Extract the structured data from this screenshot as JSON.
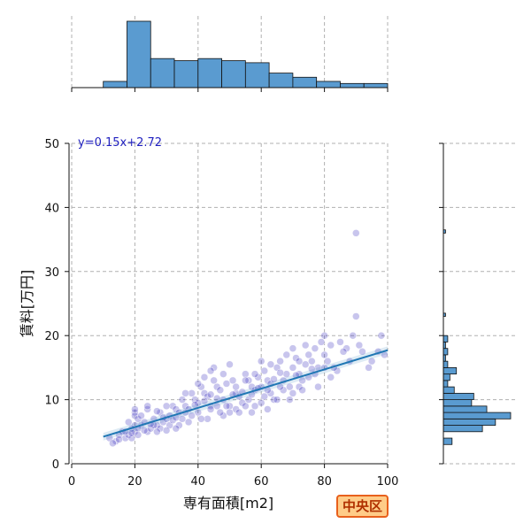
{
  "chart_data": {
    "type": "scatter",
    "xlabel": "専有面積[m2]",
    "ylabel": "賃料[万円]",
    "xlim": [
      0,
      100
    ],
    "ylim": [
      0,
      50
    ],
    "xticks": [
      0,
      20,
      40,
      60,
      80,
      100
    ],
    "yticks": [
      0,
      10,
      20,
      30,
      40,
      50
    ],
    "grid": true,
    "regression": {
      "equation": "y=0.15x+2.72",
      "slope": 0.15,
      "intercept": 2.72,
      "x_range": [
        10,
        100
      ],
      "color": "#1f77b4"
    },
    "point_color": "#3a2fbf",
    "hist_color": "#5a9bd0",
    "marginal_x_hist": {
      "bin_edges": [
        0,
        10,
        17.5,
        25,
        32.5,
        40,
        47.5,
        55,
        62.5,
        70,
        77.5,
        85,
        92.5,
        100
      ],
      "counts": [
        0,
        3,
        32,
        14,
        13,
        14,
        13,
        12,
        7,
        5,
        3,
        2,
        2
      ]
    },
    "marginal_y_hist": {
      "bin_edges": [
        3,
        4,
        5,
        6,
        7,
        8,
        9,
        10,
        11,
        12,
        13,
        14,
        15,
        16,
        17,
        18,
        19,
        20,
        21
      ],
      "counts": [
        4,
        0,
        18,
        24,
        31,
        20,
        13,
        14,
        5,
        2,
        3,
        6,
        2,
        1,
        2,
        1,
        2,
        0
      ]
    },
    "outlier_y_hist": [
      {
        "y": 36,
        "count": 1
      },
      {
        "y": 23,
        "count": 1
      }
    ],
    "points": [
      [
        20,
        8
      ],
      [
        20,
        7.5
      ],
      [
        20,
        8.5
      ],
      [
        20,
        6
      ],
      [
        21,
        7
      ],
      [
        20,
        5
      ],
      [
        19,
        5.5
      ],
      [
        18,
        6.5
      ],
      [
        22,
        6
      ],
      [
        21,
        5.5
      ],
      [
        12,
        4
      ],
      [
        14,
        3.5
      ],
      [
        15,
        4.5
      ],
      [
        17,
        4
      ],
      [
        16,
        5
      ],
      [
        18,
        4.5
      ],
      [
        13,
        3.2
      ],
      [
        19,
        4
      ],
      [
        24,
        5
      ],
      [
        23,
        6.5
      ],
      [
        25,
        5.5
      ],
      [
        26,
        7
      ],
      [
        27,
        6
      ],
      [
        28,
        8
      ],
      [
        29,
        6.5
      ],
      [
        30,
        7
      ],
      [
        31,
        7.5
      ],
      [
        32,
        9
      ],
      [
        33,
        8.5
      ],
      [
        34,
        6
      ],
      [
        35,
        10
      ],
      [
        36,
        9
      ],
      [
        37,
        8.5
      ],
      [
        38,
        11
      ],
      [
        39,
        10
      ],
      [
        40,
        9.5
      ],
      [
        41,
        12
      ],
      [
        42,
        11
      ],
      [
        43,
        10.5
      ],
      [
        44,
        9
      ],
      [
        45,
        13
      ],
      [
        46,
        12
      ],
      [
        47,
        11.5
      ],
      [
        48,
        10
      ],
      [
        49,
        12.5
      ],
      [
        50,
        9
      ],
      [
        51,
        13
      ],
      [
        52,
        11
      ],
      [
        53,
        10.5
      ],
      [
        54,
        9.5
      ],
      [
        55,
        14
      ],
      [
        56,
        13
      ],
      [
        57,
        12
      ],
      [
        58,
        11.5
      ],
      [
        59,
        13.5
      ],
      [
        60,
        12
      ],
      [
        61,
        14.5
      ],
      [
        62,
        13
      ],
      [
        63,
        11
      ],
      [
        64,
        10
      ],
      [
        65,
        15
      ],
      [
        66,
        16
      ],
      [
        67,
        13
      ],
      [
        68,
        14
      ],
      [
        69,
        12
      ],
      [
        70,
        15
      ],
      [
        71,
        16.5
      ],
      [
        72,
        14
      ],
      [
        73,
        13
      ],
      [
        74,
        15.5
      ],
      [
        75,
        17
      ],
      [
        76,
        16
      ],
      [
        77,
        18
      ],
      [
        78,
        15
      ],
      [
        79,
        19
      ],
      [
        80,
        17
      ],
      [
        81,
        16
      ],
      [
        82,
        18.5
      ],
      [
        85,
        19
      ],
      [
        87,
        18
      ],
      [
        89,
        20
      ],
      [
        90,
        23
      ],
      [
        90,
        36
      ],
      [
        92,
        17.5
      ],
      [
        95,
        16
      ],
      [
        98,
        20
      ],
      [
        99,
        17
      ],
      [
        28,
        5.5
      ],
      [
        30,
        9
      ],
      [
        34,
        8
      ],
      [
        37,
        6.5
      ],
      [
        40,
        8
      ],
      [
        43,
        7
      ],
      [
        46,
        9
      ],
      [
        48,
        7.5
      ],
      [
        50,
        8
      ],
      [
        52,
        8.5
      ],
      [
        55,
        9
      ],
      [
        57,
        8
      ],
      [
        60,
        9.5
      ],
      [
        62,
        8.5
      ],
      [
        65,
        10
      ],
      [
        67,
        11.5
      ],
      [
        70,
        11
      ],
      [
        72,
        12
      ],
      [
        75,
        13.5
      ],
      [
        78,
        12
      ],
      [
        80,
        15
      ],
      [
        84,
        14.5
      ],
      [
        88,
        16
      ],
      [
        22,
        7.5
      ],
      [
        24,
        8.5
      ],
      [
        26,
        6
      ],
      [
        27,
        5
      ],
      [
        31,
        6
      ],
      [
        33,
        5.5
      ],
      [
        35,
        7
      ],
      [
        38,
        7.5
      ],
      [
        41,
        7
      ],
      [
        44,
        8.5
      ],
      [
        47,
        8
      ],
      [
        49,
        9
      ],
      [
        53,
        8
      ],
      [
        56,
        10
      ],
      [
        58,
        9
      ],
      [
        61,
        10.5
      ],
      [
        63,
        12.5
      ],
      [
        66,
        12
      ],
      [
        69,
        10
      ],
      [
        73,
        11.5
      ],
      [
        45,
        15
      ],
      [
        50,
        15.5
      ],
      [
        55,
        13
      ],
      [
        60,
        16
      ],
      [
        62,
        11.5
      ],
      [
        68,
        17
      ],
      [
        70,
        18
      ],
      [
        77,
        14
      ],
      [
        83,
        15
      ],
      [
        86,
        17.5
      ],
      [
        15,
        3.8
      ],
      [
        17,
        5
      ],
      [
        19,
        4.8
      ],
      [
        21,
        4.5
      ],
      [
        23,
        5.2
      ],
      [
        25,
        6.2
      ],
      [
        29,
        7.2
      ],
      [
        32,
        6.8
      ],
      [
        36,
        8
      ],
      [
        39,
        9.2
      ],
      [
        42,
        9.8
      ],
      [
        44,
        10.8
      ],
      [
        46,
        10.2
      ],
      [
        51,
        10.8
      ],
      [
        54,
        11.2
      ],
      [
        57,
        10.8
      ],
      [
        59,
        11.8
      ],
      [
        64,
        13.2
      ],
      [
        71,
        13.8
      ],
      [
        76,
        14.8
      ],
      [
        24,
        9
      ],
      [
        27,
        8.2
      ],
      [
        30,
        5.2
      ],
      [
        33,
        7.2
      ],
      [
        36,
        11
      ],
      [
        40,
        12.5
      ],
      [
        42,
        13.5
      ],
      [
        44,
        14.5
      ],
      [
        48,
        14
      ],
      [
        52,
        12
      ],
      [
        58,
        14
      ],
      [
        63,
        15.5
      ],
      [
        66,
        14.2
      ],
      [
        72,
        16
      ],
      [
        74,
        18.5
      ],
      [
        80,
        20
      ],
      [
        82,
        13.5
      ],
      [
        91,
        18.5
      ],
      [
        94,
        15
      ],
      [
        97,
        17.5
      ]
    ]
  },
  "badge": {
    "label": "中央区"
  }
}
